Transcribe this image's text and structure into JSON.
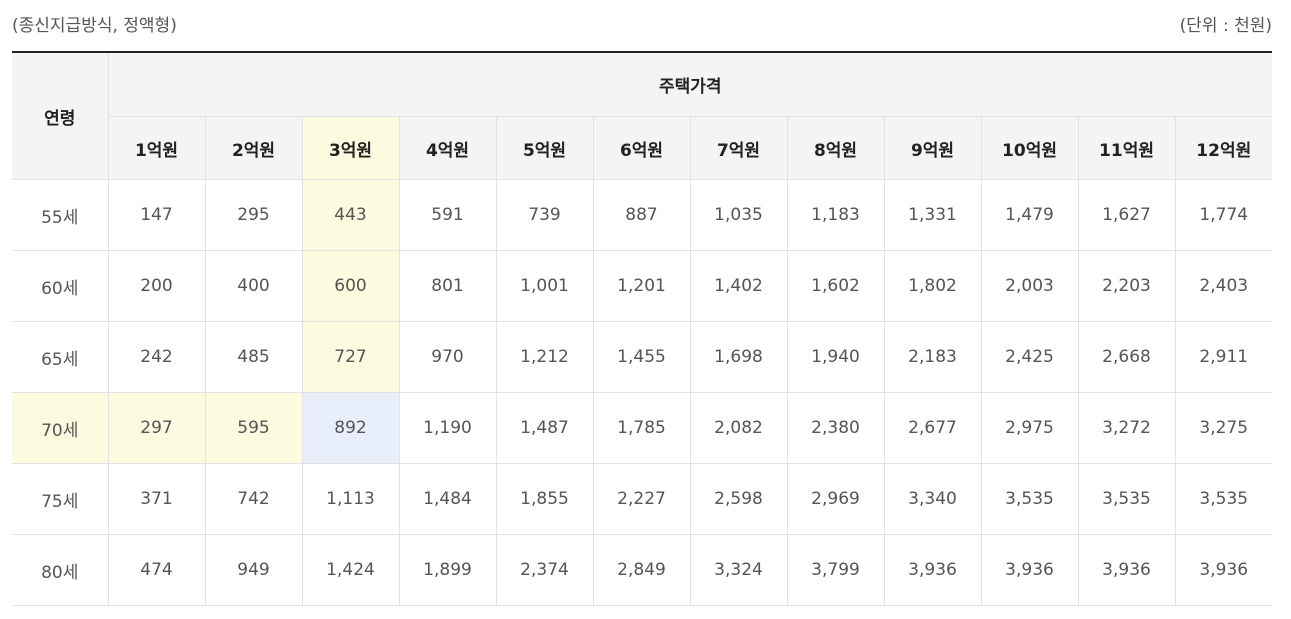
{
  "caption": {
    "left": "(종신지급방식, 정액형)",
    "right": "(단위 : 천원)"
  },
  "table": {
    "age_header": "연령",
    "price_header": "주택가격",
    "price_columns": [
      "1억원",
      "2억원",
      "3억원",
      "4억원",
      "5억원",
      "6억원",
      "7억원",
      "8억원",
      "9억원",
      "10억원",
      "11억원",
      "12억원"
    ],
    "highlighted_column_index": 2,
    "highlighted_row_index": 3,
    "rows": [
      {
        "age": "55세",
        "values": [
          "147",
          "295",
          "443",
          "591",
          "739",
          "887",
          "1,035",
          "1,183",
          "1,331",
          "1,479",
          "1,627",
          "1,774"
        ]
      },
      {
        "age": "60세",
        "values": [
          "200",
          "400",
          "600",
          "801",
          "1,001",
          "1,201",
          "1,402",
          "1,602",
          "1,802",
          "2,003",
          "2,203",
          "2,403"
        ]
      },
      {
        "age": "65세",
        "values": [
          "242",
          "485",
          "727",
          "970",
          "1,212",
          "1,455",
          "1,698",
          "1,940",
          "2,183",
          "2,425",
          "2,668",
          "2,911"
        ]
      },
      {
        "age": "70세",
        "values": [
          "297",
          "595",
          "892",
          "1,190",
          "1,487",
          "1,785",
          "2,082",
          "2,380",
          "2,677",
          "2,975",
          "3,272",
          "3,275"
        ]
      },
      {
        "age": "75세",
        "values": [
          "371",
          "742",
          "1,113",
          "1,484",
          "1,855",
          "2,227",
          "2,598",
          "2,969",
          "3,340",
          "3,535",
          "3,535",
          "3,535"
        ]
      },
      {
        "age": "80세",
        "values": [
          "474",
          "949",
          "1,424",
          "1,899",
          "2,374",
          "2,849",
          "3,324",
          "3,799",
          "3,936",
          "3,936",
          "3,936",
          "3,936"
        ]
      }
    ]
  },
  "colors": {
    "highlight_yellow": "#fdfbdf",
    "highlight_blue": "#e8eefa",
    "header_background": "#f4f4f4"
  }
}
